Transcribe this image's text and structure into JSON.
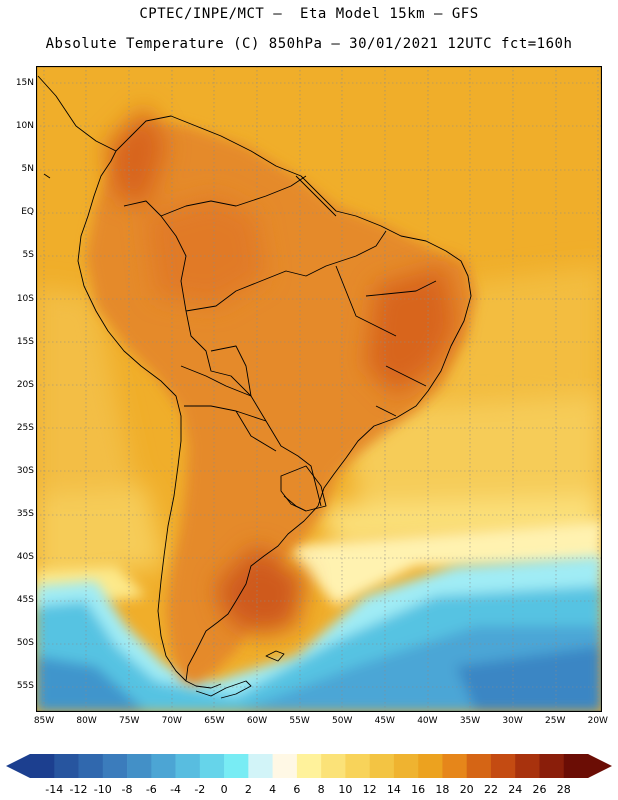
{
  "header": {
    "line1": "CPTEC/INPE/MCT —  Eta Model 15km — GFS",
    "line2": "Absolute Temperature (C) 850hPa — 30/01/2021 12UTC fct=160h"
  },
  "axes": {
    "lat_ticks": [
      "15N",
      "10N",
      "5N",
      "EQ",
      "5S",
      "10S",
      "15S",
      "20S",
      "25S",
      "30S",
      "35S",
      "40S",
      "45S",
      "50S",
      "55S"
    ],
    "lon_ticks": [
      "85W",
      "80W",
      "75W",
      "70W",
      "65W",
      "60W",
      "55W",
      "50W",
      "45W",
      "40W",
      "35W",
      "30W",
      "25W",
      "20W"
    ]
  },
  "legend": {
    "labels": [
      "-14",
      "-12",
      "-10",
      "-8",
      "-6",
      "-4",
      "-2",
      "0",
      "2",
      "4",
      "6",
      "8",
      "10",
      "12",
      "14",
      "16",
      "18",
      "20",
      "22",
      "24",
      "26",
      "28"
    ],
    "colors": [
      "#1c3f8f",
      "#27559f",
      "#3068ae",
      "#3b7cbc",
      "#4390c7",
      "#4ca5d4",
      "#58bde0",
      "#66d4ea",
      "#78ecf4",
      "#d2f4f8",
      "#fff8e5",
      "#fff29b",
      "#fbe278",
      "#f8d35a",
      "#f3c443",
      "#efb330",
      "#eca21f",
      "#e6861a",
      "#d56515",
      "#c44b12",
      "#a8320d",
      "#8a1e0a",
      "#6b0d05"
    ]
  },
  "map": {
    "region": "South America",
    "colors": {
      "ocean_warm": "#f0ae2a",
      "ocean_mild": "#f6cc58",
      "ocean_cool": "#fde98a",
      "land_warm": "#e58a2a",
      "land_hot": "#d8651e",
      "cold_light": "#a0ecf5",
      "cold_mid": "#56c3e2",
      "cold_deep": "#3a86c4",
      "border": "#000000",
      "grid": "#8a8a8a"
    }
  }
}
